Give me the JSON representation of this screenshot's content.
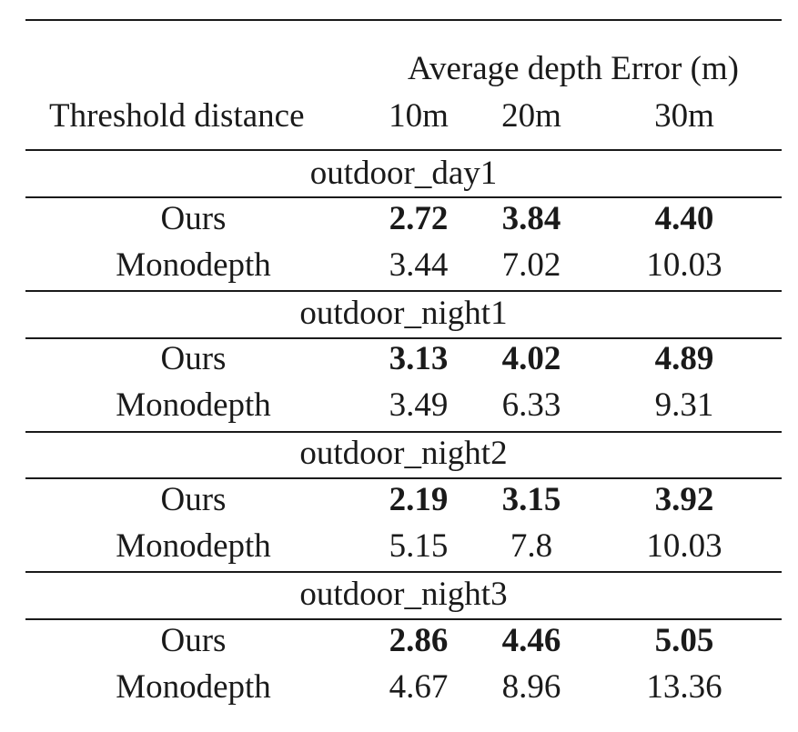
{
  "table": {
    "header": {
      "group_label": "Average depth Error (m)",
      "row_label": "Threshold distance",
      "columns": [
        "10m",
        "20m",
        "30m"
      ]
    },
    "sections": [
      {
        "name": "outdoor_day1",
        "rows": [
          {
            "method": "Ours",
            "values": [
              "2.72",
              "3.84",
              "4.40"
            ],
            "bold": true
          },
          {
            "method": "Monodepth",
            "values": [
              "3.44",
              "7.02",
              "10.03"
            ],
            "bold": false
          }
        ]
      },
      {
        "name": "outdoor_night1",
        "rows": [
          {
            "method": "Ours",
            "values": [
              "3.13",
              "4.02",
              "4.89"
            ],
            "bold": true
          },
          {
            "method": "Monodepth",
            "values": [
              "3.49",
              "6.33",
              "9.31"
            ],
            "bold": false
          }
        ]
      },
      {
        "name": "outdoor_night2",
        "rows": [
          {
            "method": "Ours",
            "values": [
              "2.19",
              "3.15",
              "3.92"
            ],
            "bold": true
          },
          {
            "method": "Monodepth",
            "values": [
              "5.15",
              "7.8",
              "10.03"
            ],
            "bold": false
          }
        ]
      },
      {
        "name": "outdoor_night3",
        "rows": [
          {
            "method": "Ours",
            "values": [
              "2.86",
              "4.46",
              "5.05"
            ],
            "bold": true
          },
          {
            "method": "Monodepth",
            "values": [
              "4.67",
              "8.96",
              "13.36"
            ],
            "bold": false
          }
        ]
      }
    ]
  }
}
